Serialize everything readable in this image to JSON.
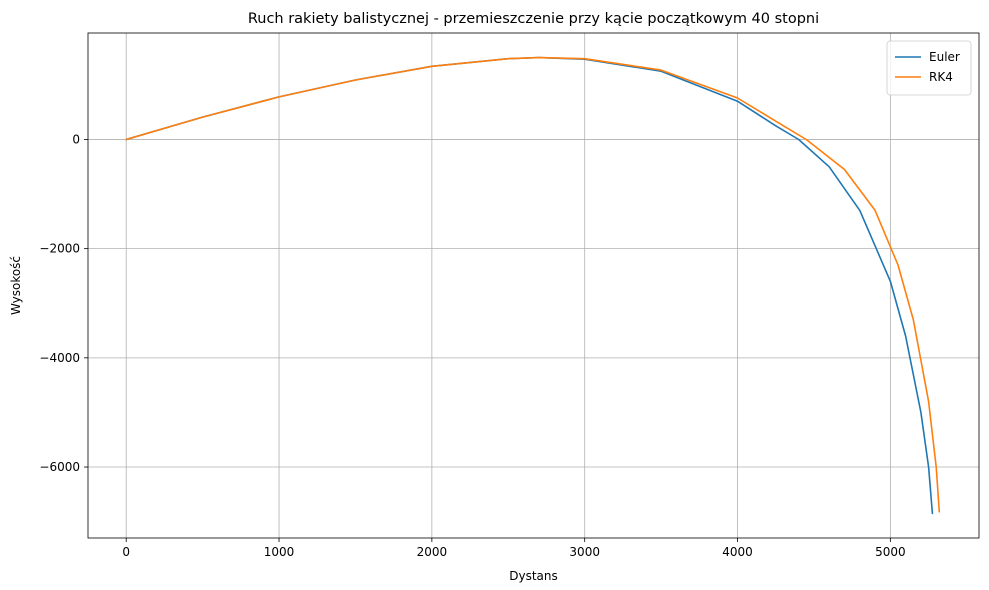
{
  "chart_data": {
    "type": "line",
    "title": "Ruch rakiety balistycznej - przemieszczenie przy kącie początkowym 40 stopni",
    "xlabel": "Dystans",
    "ylabel": "Wysokość",
    "xlim": [
      -250,
      5580
    ],
    "ylim": [
      -7300,
      1950
    ],
    "xticks": [
      0,
      1000,
      2000,
      3000,
      4000,
      5000
    ],
    "yticks": [
      -6000,
      -4000,
      -2000,
      0
    ],
    "xtick_labels": [
      "0",
      "1000",
      "2000",
      "3000",
      "4000",
      "5000"
    ],
    "ytick_labels": [
      "−6000",
      "−4000",
      "−2000",
      "0"
    ],
    "grid": true,
    "legend_position": "top-right",
    "series": [
      {
        "name": "Euler",
        "color": "#1f77b4",
        "x": [
          0,
          500,
          1000,
          1500,
          2000,
          2500,
          2700,
          3000,
          3500,
          4000,
          4250,
          4400,
          4600,
          4800,
          5000,
          5100,
          5200,
          5250,
          5275
        ],
        "y": [
          0,
          410,
          780,
          1090,
          1340,
          1480,
          1500,
          1470,
          1250,
          700,
          250,
          0,
          -500,
          -1300,
          -2600,
          -3600,
          -5000,
          -6000,
          -6850
        ]
      },
      {
        "name": "RK4",
        "color": "#ff7f0e",
        "x": [
          0,
          500,
          1000,
          1500,
          2000,
          2500,
          2700,
          3000,
          3500,
          4000,
          4300,
          4450,
          4700,
          4900,
          5050,
          5150,
          5250,
          5300,
          5320
        ],
        "y": [
          0,
          410,
          780,
          1090,
          1340,
          1480,
          1500,
          1480,
          1270,
          760,
          250,
          0,
          -550,
          -1300,
          -2300,
          -3300,
          -4800,
          -6000,
          -6820
        ]
      }
    ]
  }
}
